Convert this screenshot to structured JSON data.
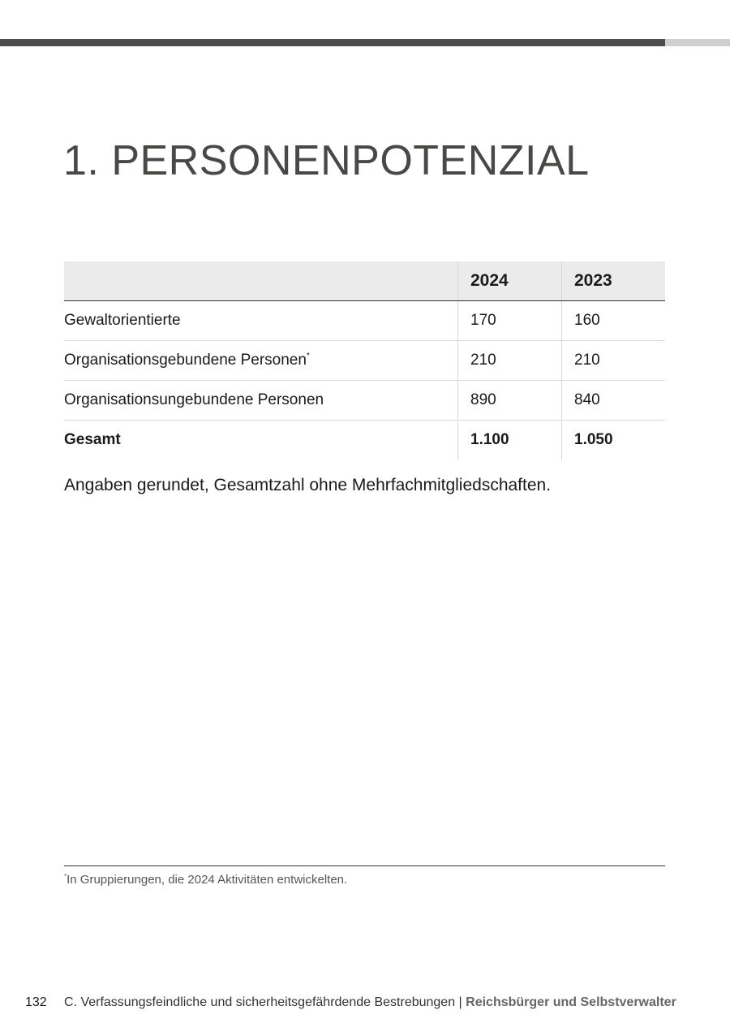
{
  "header": {
    "bar_color": "#4f4d4b",
    "bar_accent_color": "#cfcfcf"
  },
  "title": "1. PERSONENPOTENZIAL",
  "table": {
    "columns": [
      "",
      "2024",
      "2023"
    ],
    "rows": [
      {
        "label": "Gewaltorientierte",
        "marker": "",
        "v2024": "170",
        "v2023": "160"
      },
      {
        "label": "Organisationsgebundene Personen",
        "marker": "*",
        "v2024": "210",
        "v2023": "210"
      },
      {
        "label": "Organisationsungebundene Personen",
        "marker": "",
        "v2024": "890",
        "v2023": "840"
      }
    ],
    "total": {
      "label": "Gesamt",
      "v2024": "1.100",
      "v2023": "1.050"
    }
  },
  "note": "Angaben gerundet, Gesamtzahl ohne Mehrfachmitgliedschaften.",
  "footnote": {
    "marker": "*",
    "text": "In Gruppierungen, die 2024 Aktivitäten entwickelten."
  },
  "footer": {
    "page_number": "132",
    "chapter": "C. Verfassungsfeindliche und sicherheitsgefährdende Bestrebungen",
    "separator": " | ",
    "section": "Reichsbürger und Selbstverwalter"
  }
}
